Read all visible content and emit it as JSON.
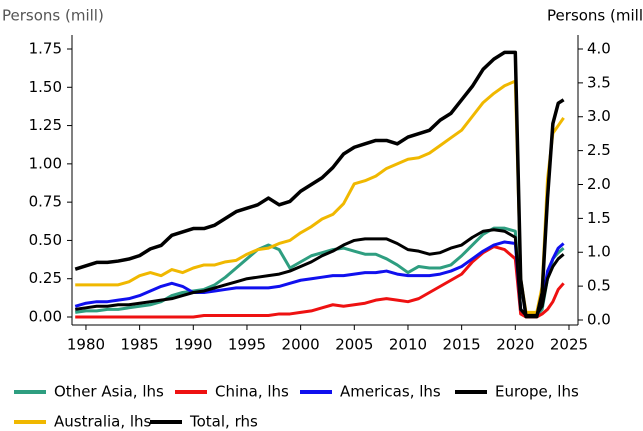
{
  "chart_data": {
    "type": "line",
    "ylabel": "Persons (mill)",
    "y2label": "Persons (mill",
    "x": [
      1979,
      1980,
      1981,
      1982,
      1983,
      1984,
      1985,
      1986,
      1987,
      1988,
      1989,
      1990,
      1991,
      1992,
      1993,
      1994,
      1995,
      1996,
      1997,
      1998,
      1999,
      2000,
      2001,
      2002,
      2003,
      2004,
      2005,
      2006,
      2007,
      2008,
      2009,
      2010,
      2011,
      2012,
      2013,
      2014,
      2015,
      2016,
      2017,
      2018,
      2019,
      2020,
      2020.5,
      2021,
      2022,
      2022.5,
      2023,
      2023.5,
      2024,
      2024.5
    ],
    "series": [
      {
        "name": "Other Asia, lhs",
        "color": "#2e9e80",
        "axis": "y",
        "values": [
          0.03,
          0.04,
          0.04,
          0.05,
          0.05,
          0.06,
          0.07,
          0.08,
          0.1,
          0.14,
          0.16,
          0.17,
          0.18,
          0.21,
          0.26,
          0.32,
          0.38,
          0.44,
          0.47,
          0.44,
          0.32,
          0.36,
          0.4,
          0.42,
          0.44,
          0.45,
          0.43,
          0.41,
          0.41,
          0.38,
          0.34,
          0.29,
          0.33,
          0.32,
          0.32,
          0.34,
          0.4,
          0.47,
          0.54,
          0.58,
          0.58,
          0.56,
          0.05,
          0.01,
          0.01,
          0.05,
          0.25,
          0.38,
          0.42,
          0.45
        ]
      },
      {
        "name": "China, lhs",
        "color": "#ee1111",
        "axis": "y",
        "values": [
          0,
          0,
          0,
          0,
          0,
          0,
          0,
          0,
          0,
          0,
          0,
          0,
          0.01,
          0.01,
          0.01,
          0.01,
          0.01,
          0.01,
          0.01,
          0.02,
          0.02,
          0.03,
          0.04,
          0.06,
          0.08,
          0.07,
          0.08,
          0.09,
          0.11,
          0.12,
          0.11,
          0.1,
          0.12,
          0.16,
          0.2,
          0.24,
          0.28,
          0.36,
          0.42,
          0.46,
          0.44,
          0.38,
          0.02,
          0,
          0,
          0.02,
          0.05,
          0.1,
          0.18,
          0.22
        ]
      },
      {
        "name": "Americas, lhs",
        "color": "#1010ee",
        "axis": "y",
        "values": [
          0.07,
          0.09,
          0.1,
          0.1,
          0.11,
          0.12,
          0.14,
          0.17,
          0.2,
          0.22,
          0.2,
          0.16,
          0.16,
          0.17,
          0.18,
          0.19,
          0.19,
          0.19,
          0.19,
          0.2,
          0.22,
          0.24,
          0.25,
          0.26,
          0.27,
          0.27,
          0.28,
          0.29,
          0.29,
          0.3,
          0.28,
          0.27,
          0.27,
          0.27,
          0.28,
          0.3,
          0.33,
          0.38,
          0.43,
          0.47,
          0.49,
          0.48,
          0.05,
          0.01,
          0.01,
          0.08,
          0.3,
          0.38,
          0.45,
          0.48
        ]
      },
      {
        "name": "Europe, lhs",
        "color": "#000000",
        "axis": "y",
        "values": [
          0.05,
          0.06,
          0.07,
          0.07,
          0.08,
          0.08,
          0.09,
          0.1,
          0.11,
          0.12,
          0.14,
          0.16,
          0.17,
          0.19,
          0.21,
          0.23,
          0.25,
          0.26,
          0.27,
          0.28,
          0.3,
          0.33,
          0.36,
          0.4,
          0.43,
          0.47,
          0.5,
          0.51,
          0.51,
          0.51,
          0.48,
          0.44,
          0.43,
          0.41,
          0.42,
          0.45,
          0.47,
          0.52,
          0.56,
          0.57,
          0.56,
          0.52,
          0.05,
          0.01,
          0.02,
          0.07,
          0.25,
          0.33,
          0.38,
          0.41
        ]
      },
      {
        "name": "Australia, lhs",
        "color": "#f0b800",
        "axis": "y",
        "values": [
          0.21,
          0.21,
          0.21,
          0.21,
          0.21,
          0.23,
          0.27,
          0.29,
          0.27,
          0.31,
          0.29,
          0.32,
          0.34,
          0.34,
          0.36,
          0.37,
          0.41,
          0.44,
          0.45,
          0.48,
          0.5,
          0.55,
          0.59,
          0.64,
          0.67,
          0.74,
          0.87,
          0.89,
          0.92,
          0.97,
          1.0,
          1.03,
          1.04,
          1.07,
          1.12,
          1.17,
          1.22,
          1.31,
          1.4,
          1.46,
          1.51,
          1.54,
          0.25,
          0.03,
          0.03,
          0.2,
          0.9,
          1.2,
          1.25,
          1.3
        ]
      },
      {
        "name": "Total, rhs",
        "color": "#000000",
        "axis": "y2",
        "values": [
          0.75,
          0.8,
          0.85,
          0.85,
          0.87,
          0.9,
          0.95,
          1.05,
          1.1,
          1.25,
          1.3,
          1.35,
          1.35,
          1.4,
          1.5,
          1.6,
          1.65,
          1.7,
          1.8,
          1.7,
          1.75,
          1.9,
          2.0,
          2.1,
          2.25,
          2.45,
          2.55,
          2.6,
          2.65,
          2.65,
          2.6,
          2.7,
          2.75,
          2.8,
          2.95,
          3.05,
          3.25,
          3.45,
          3.7,
          3.85,
          3.95,
          3.95,
          0.6,
          0.05,
          0.05,
          0.4,
          1.8,
          2.9,
          3.2,
          3.25
        ]
      }
    ],
    "xlim": [
      1978.7,
      2025.84
    ],
    "xticks": [
      1980,
      1985,
      1990,
      1995,
      2000,
      2005,
      2010,
      2015,
      2020,
      2025
    ],
    "ylim": [
      -0.0522,
      1.8414
    ],
    "yticks": [
      {
        "value": 0,
        "label": "0.00"
      },
      0.25,
      {
        "value": 0.5,
        "label": "0.50"
      },
      0.75,
      {
        "value": 1,
        "label": "1.00"
      },
      1.25,
      {
        "value": 1.5,
        "label": "1.50"
      },
      1.75
    ],
    "y2lim": [
      -0.0738,
      4.2066
    ],
    "y2ticks": [
      {
        "value": 0,
        "label": "0.0"
      },
      0.5,
      {
        "value": 1,
        "label": "1.0"
      },
      1.5,
      {
        "value": 2,
        "label": "2.0"
      },
      2.5,
      {
        "value": 3,
        "label": "3.0"
      },
      3.5,
      {
        "value": 4,
        "label": "4.0"
      }
    ],
    "legend": "bottom"
  }
}
